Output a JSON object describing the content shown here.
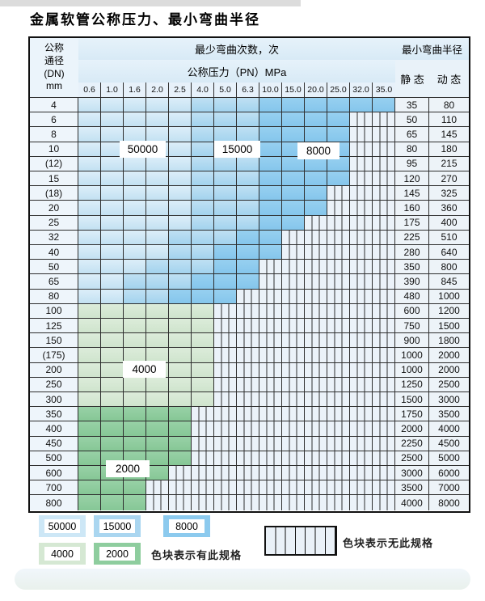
{
  "title": "金属软管公称压力、最小弯曲半径",
  "table": {
    "header": {
      "dn_lines": [
        "公称",
        "通径",
        "(DN)",
        "mm"
      ],
      "cycles_title": "最少弯曲次数，次",
      "radius_title": "最小弯曲半径",
      "pressure_title": "公称压力（PN）MPa",
      "static_label": "静 态",
      "dynamic_label": "动 态",
      "pressures": [
        "0.6",
        "1.0",
        "1.6",
        "2.0",
        "2.5",
        "4.0",
        "5.0",
        "6.3",
        "10.0",
        "15.0",
        "20.0",
        "25.0",
        "32.0",
        "35.0"
      ]
    },
    "cell_code_meaning": {
      "L": "50000次 淡蓝色块",
      "M": "15000次 中蓝色块",
      "D": "8000次 深蓝色块",
      "g": "4000次 淡绿色块",
      "G": "2000次 深绿色块",
      ".": "无此规格（竖条纹）"
    },
    "rows": [
      {
        "dn": "4",
        "cells": "LLLLLMMMDDDDDD",
        "static": "35",
        "dynamic": "80"
      },
      {
        "dn": "6",
        "cells": "LLLLLMMMDDDD..",
        "static": "50",
        "dynamic": "110"
      },
      {
        "dn": "8",
        "cells": "LLLLLMMMDDDD..",
        "static": "65",
        "dynamic": "145"
      },
      {
        "dn": "10",
        "cells": "LLLLLMMMDDDD..",
        "static": "80",
        "dynamic": "180"
      },
      {
        "dn": "(12)",
        "cells": "LLLLLMMMDDDD..",
        "static": "95",
        "dynamic": "215"
      },
      {
        "dn": "15",
        "cells": "LLLLLMMMDDDD..",
        "static": "120",
        "dynamic": "270"
      },
      {
        "dn": "(18)",
        "cells": "LLLLLMMMDDD...",
        "static": "145",
        "dynamic": "325"
      },
      {
        "dn": "20",
        "cells": "LLLLLMMMDDD...",
        "static": "160",
        "dynamic": "360"
      },
      {
        "dn": "25",
        "cells": "LLLLLMMMDD....",
        "static": "175",
        "dynamic": "400"
      },
      {
        "dn": "32",
        "cells": "LLLLMMMDD.....",
        "static": "225",
        "dynamic": "510"
      },
      {
        "dn": "40",
        "cells": "LLLLMMDDD.....",
        "static": "280",
        "dynamic": "640"
      },
      {
        "dn": "50",
        "cells": "LLLMMMDD......",
        "static": "350",
        "dynamic": "800"
      },
      {
        "dn": "65",
        "cells": "LLMMMDDD......",
        "static": "390",
        "dynamic": "845"
      },
      {
        "dn": "80",
        "cells": "LLMMDDD.......",
        "static": "480",
        "dynamic": "1000"
      },
      {
        "dn": "100",
        "cells": "gggggg........",
        "static": "600",
        "dynamic": "1200"
      },
      {
        "dn": "125",
        "cells": "gggggg........",
        "static": "750",
        "dynamic": "1500"
      },
      {
        "dn": "150",
        "cells": "gggggg........",
        "static": "900",
        "dynamic": "1800"
      },
      {
        "dn": "(175)",
        "cells": "gggggg........",
        "static": "1000",
        "dynamic": "2000"
      },
      {
        "dn": "200",
        "cells": "gggggg........",
        "static": "1000",
        "dynamic": "2000"
      },
      {
        "dn": "250",
        "cells": "gggggg........",
        "static": "1250",
        "dynamic": "2500"
      },
      {
        "dn": "300",
        "cells": "gggggg........",
        "static": "1500",
        "dynamic": "3000"
      },
      {
        "dn": "350",
        "cells": "GGGGG.........",
        "static": "1750",
        "dynamic": "3500"
      },
      {
        "dn": "400",
        "cells": "GGGGG.........",
        "static": "2000",
        "dynamic": "4000"
      },
      {
        "dn": "450",
        "cells": "GGGGG.........",
        "static": "2250",
        "dynamic": "4500"
      },
      {
        "dn": "500",
        "cells": "GGGGG.........",
        "static": "2500",
        "dynamic": "5000"
      },
      {
        "dn": "600",
        "cells": "GGGG..........",
        "static": "3000",
        "dynamic": "6000"
      },
      {
        "dn": "700",
        "cells": "GGG...........",
        "static": "3500",
        "dynamic": "7000"
      },
      {
        "dn": "800",
        "cells": "GGG...........",
        "static": "4000",
        "dynamic": "8000"
      }
    ]
  },
  "overlay_labels": [
    {
      "text": "50000"
    },
    {
      "text": "15000"
    },
    {
      "text": "8000"
    },
    {
      "text": "4000"
    },
    {
      "text": "2000"
    }
  ],
  "legend": {
    "items": [
      {
        "label": "50000",
        "color": "#cde7f6"
      },
      {
        "label": "15000",
        "color": "#aad6f0"
      },
      {
        "label": "8000",
        "color": "#8ccaee"
      },
      {
        "label": "4000",
        "color": "#d5e8d3"
      },
      {
        "label": "2000",
        "color": "#8ecd9e"
      }
    ],
    "available_note": "色块表示有此规格",
    "unavailable_note": "色块表示无此规格"
  },
  "colors": {
    "cycles_50000": "#cde7f6",
    "cycles_15000": "#aad6f0",
    "cycles_8000": "#8ccaee",
    "cycles_4000": "#d5e8d3",
    "cycles_2000": "#8ecd9e",
    "no_spec_bg": "#ebf2f9",
    "grid_line": "#2e2e2e",
    "header_bg": "#ddeef8"
  }
}
